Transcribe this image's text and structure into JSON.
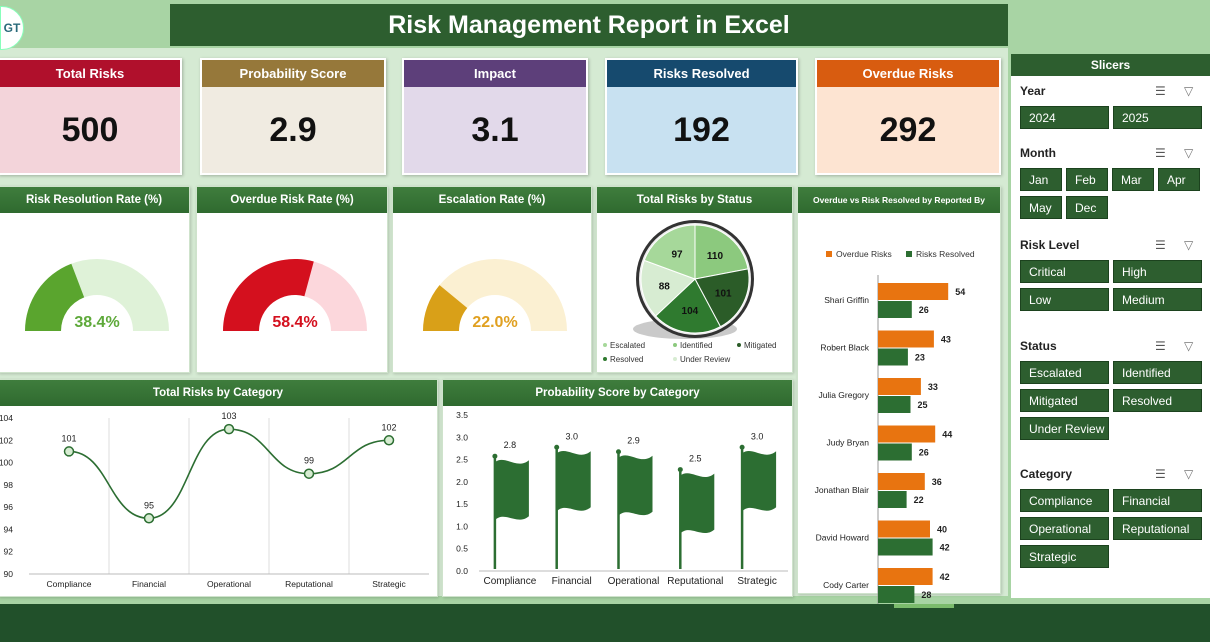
{
  "title": "Risk Management Report in Excel",
  "logo_text": "GT",
  "kpis": [
    {
      "label": "Total Risks",
      "value": "500",
      "head": "#b0102c",
      "body": "#f3d4da"
    },
    {
      "label": "Probability Score",
      "value": "2.9",
      "head": "#96783a",
      "body": "#f0ebe1"
    },
    {
      "label": "Impact",
      "value": "3.1",
      "head": "#5d3f7a",
      "body": "#e2d9ea"
    },
    {
      "label": "Risks Resolved",
      "value": "192",
      "head": "#164a6e",
      "body": "#c8e1f1"
    },
    {
      "label": "Overdue Risks",
      "value": "292",
      "head": "#d85c10",
      "body": "#fde4d2"
    }
  ],
  "gauges": [
    {
      "title": "Risk Resolution Rate (%)",
      "label": "38.4%",
      "value": 38.4,
      "color": "#5aa52e",
      "light": "#dff2d8",
      "text": "#5ea93a"
    },
    {
      "title": "Overdue Risk Rate (%)",
      "label": "58.4%",
      "value": 58.4,
      "color": "#d4101e",
      "light": "#fcd7dc",
      "text": "#d4101e"
    },
    {
      "title": "Escalation Rate (%)",
      "label": "22.0%",
      "value": 22.0,
      "color": "#d9a018",
      "light": "#fbf0d2",
      "text": "#e0a020"
    }
  ],
  "status_chart": {
    "title": "Total Risks by Status",
    "chart_data": {
      "type": "pie",
      "categories": [
        "Escalated",
        "Identified",
        "Mitigated",
        "Resolved",
        "Under Review"
      ],
      "values": [
        97,
        110,
        101,
        104,
        88
      ],
      "colors": [
        "#a6d89a",
        "#8cc97e",
        "#2b5c28",
        "#2f7a2f",
        "#d7ecd2"
      ]
    },
    "legend": [
      "Escalated",
      "Identified",
      "Mitigated",
      "Resolved",
      "Under Review"
    ]
  },
  "reporter_chart": {
    "title": "Overdue vs Risk Resolved by Reported By",
    "legend": [
      "Overdue Risks",
      "Risks Resolved"
    ],
    "colors": [
      "#e87410",
      "#2c6e32"
    ],
    "chart_data": {
      "type": "bar",
      "orientation": "horizontal",
      "categories": [
        "Shari Griffin",
        "Robert Black",
        "Julia Gregory",
        "Judy Bryan",
        "Jonathan Blair",
        "David Howard",
        "Cody Carter"
      ],
      "series": [
        {
          "name": "Overdue Risks",
          "values": [
            54,
            43,
            33,
            44,
            36,
            40,
            42
          ]
        },
        {
          "name": "Risks Resolved",
          "values": [
            26,
            23,
            25,
            26,
            22,
            42,
            28
          ]
        }
      ]
    }
  },
  "category_chart": {
    "title": "Total Risks by Category",
    "chart_data": {
      "type": "line",
      "categories": [
        "Compliance",
        "Financial",
        "Operational",
        "Reputational",
        "Strategic"
      ],
      "values": [
        101,
        95,
        103,
        99,
        102
      ],
      "ylim": [
        90,
        104
      ],
      "yticks": [
        "104",
        "102",
        "100",
        "98",
        "96",
        "94",
        "92",
        "90"
      ]
    }
  },
  "prob_chart": {
    "title": "Probability Score by Category",
    "chart_data": {
      "type": "bar",
      "categories": [
        "Compliance",
        "Financial",
        "Operational",
        "Reputational",
        "Strategic"
      ],
      "values": [
        2.8,
        3.0,
        2.9,
        2.5,
        3.0
      ],
      "labels": [
        "2.8",
        "3.0",
        "2.9",
        "2.5",
        "3.0"
      ],
      "ylim": [
        0,
        3.5
      ],
      "yticks": [
        "3.5",
        "3.0",
        "2.5",
        "2.0",
        "1.5",
        "1.0",
        "0.5",
        "0.0"
      ]
    }
  },
  "slicers": {
    "title": "Slicers",
    "sections": [
      {
        "label": "Year",
        "items": [
          "2024",
          "2025"
        ]
      },
      {
        "label": "Month",
        "items": [
          "Jan",
          "Feb",
          "Mar",
          "Apr",
          "May",
          "Dec"
        ]
      },
      {
        "label": "Risk Level",
        "items": [
          "Critical",
          "High",
          "Low",
          "Medium"
        ]
      },
      {
        "label": "Status",
        "items": [
          "Escalated",
          "Identified",
          "Mitigated",
          "Resolved",
          "Under Review"
        ]
      },
      {
        "label": "Category",
        "items": [
          "Compliance",
          "Financial",
          "Operational",
          "Reputational",
          "Strategic"
        ]
      }
    ]
  }
}
